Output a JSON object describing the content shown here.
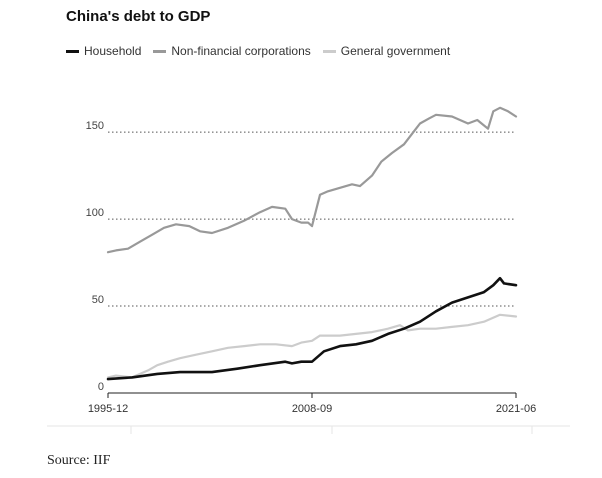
{
  "title": "China's debt to GDP",
  "source": "Source: IIF",
  "chart_data": {
    "type": "line",
    "title": "China's debt to GDP",
    "xlabel": "",
    "ylabel": "",
    "ylim": [
      0,
      180
    ],
    "yticks": [
      0,
      50,
      100,
      150
    ],
    "ytick_labels": [
      "0",
      "50",
      "100",
      "150"
    ],
    "xticks": [
      "1995-12",
      "2008-09",
      "2021-06"
    ],
    "grid": true,
    "legend_position": "top",
    "series": [
      {
        "name": "Household",
        "color": "#111111",
        "points": [
          [
            "1995-12",
            8
          ],
          [
            "1997-06",
            9
          ],
          [
            "1999-01",
            11
          ],
          [
            "2000-06",
            12
          ],
          [
            "2002-06",
            12
          ],
          [
            "2004-01",
            14
          ],
          [
            "2005-06",
            16
          ],
          [
            "2007-01",
            18
          ],
          [
            "2007-06",
            17
          ],
          [
            "2008-01",
            18
          ],
          [
            "2008-09",
            18
          ],
          [
            "2009-06",
            24
          ],
          [
            "2010-06",
            27
          ],
          [
            "2011-06",
            28
          ],
          [
            "2012-06",
            30
          ],
          [
            "2013-06",
            34
          ],
          [
            "2014-06",
            37
          ],
          [
            "2015-06",
            41
          ],
          [
            "2016-06",
            47
          ],
          [
            "2017-06",
            52
          ],
          [
            "2018-06",
            55
          ],
          [
            "2019-06",
            58
          ],
          [
            "2020-01",
            62
          ],
          [
            "2020-06",
            66
          ],
          [
            "2020-09",
            63
          ],
          [
            "2021-06",
            62
          ]
        ]
      },
      {
        "name": "Non-financial corporations",
        "color": "#999999",
        "points": [
          [
            "1995-12",
            81
          ],
          [
            "1996-06",
            82
          ],
          [
            "1997-03",
            83
          ],
          [
            "1997-12",
            87
          ],
          [
            "1998-09",
            91
          ],
          [
            "1999-06",
            95
          ],
          [
            "2000-03",
            97
          ],
          [
            "2001-01",
            96
          ],
          [
            "2001-09",
            93
          ],
          [
            "2002-06",
            92
          ],
          [
            "2003-06",
            95
          ],
          [
            "2004-06",
            99
          ],
          [
            "2005-06",
            104
          ],
          [
            "2006-03",
            107
          ],
          [
            "2007-01",
            106
          ],
          [
            "2007-06",
            100
          ],
          [
            "2008-01",
            98
          ],
          [
            "2008-06",
            98
          ],
          [
            "2008-09",
            96
          ],
          [
            "2009-03",
            114
          ],
          [
            "2009-09",
            116
          ],
          [
            "2010-06",
            118
          ],
          [
            "2011-03",
            120
          ],
          [
            "2011-09",
            119
          ],
          [
            "2012-06",
            125
          ],
          [
            "2013-01",
            133
          ],
          [
            "2013-09",
            138
          ],
          [
            "2014-06",
            143
          ],
          [
            "2015-01",
            150
          ],
          [
            "2015-06",
            155
          ],
          [
            "2016-01",
            158
          ],
          [
            "2016-06",
            160
          ],
          [
            "2017-06",
            159
          ],
          [
            "2018-06",
            155
          ],
          [
            "2019-01",
            157
          ],
          [
            "2019-09",
            152
          ],
          [
            "2020-01",
            162
          ],
          [
            "2020-06",
            164
          ],
          [
            "2020-12",
            162
          ],
          [
            "2021-06",
            159
          ]
        ]
      },
      {
        "name": "General government",
        "color": "#cccccc",
        "points": [
          [
            "1995-12",
            9
          ],
          [
            "1996-06",
            10
          ],
          [
            "1997-06",
            9
          ],
          [
            "1998-06",
            13
          ],
          [
            "1999-01",
            16
          ],
          [
            "1999-09",
            18
          ],
          [
            "2000-06",
            20
          ],
          [
            "2001-06",
            22
          ],
          [
            "2002-06",
            24
          ],
          [
            "2003-06",
            26
          ],
          [
            "2004-06",
            27
          ],
          [
            "2005-06",
            28
          ],
          [
            "2006-06",
            28
          ],
          [
            "2007-06",
            27
          ],
          [
            "2008-01",
            29
          ],
          [
            "2008-09",
            30
          ],
          [
            "2009-03",
            33
          ],
          [
            "2009-09",
            33
          ],
          [
            "2010-06",
            33
          ],
          [
            "2011-06",
            34
          ],
          [
            "2012-06",
            35
          ],
          [
            "2013-06",
            37
          ],
          [
            "2014-03",
            39
          ],
          [
            "2014-09",
            36
          ],
          [
            "2015-06",
            37
          ],
          [
            "2016-06",
            37
          ],
          [
            "2017-06",
            38
          ],
          [
            "2018-06",
            39
          ],
          [
            "2019-06",
            41
          ],
          [
            "2020-06",
            45
          ],
          [
            "2021-06",
            44
          ]
        ]
      }
    ]
  }
}
